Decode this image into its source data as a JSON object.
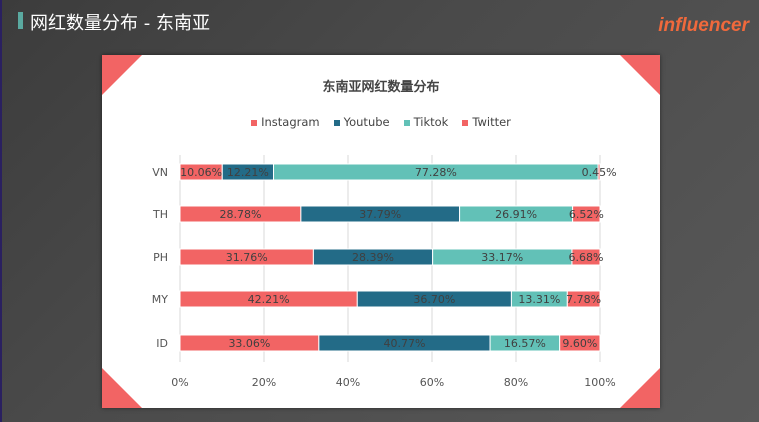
{
  "header": {
    "title": "网红数量分布 - 东南亚",
    "logo": "influencer"
  },
  "chart_data": {
    "type": "bar",
    "orientation": "horizontal",
    "stacked": "percent",
    "title": "东南亚网红数量分布",
    "categories": [
      "VN",
      "TH",
      "PH",
      "MY",
      "ID"
    ],
    "series": [
      {
        "name": "Instagram",
        "color": "#f26464",
        "values": [
          10.06,
          28.78,
          31.76,
          42.21,
          33.06
        ]
      },
      {
        "name": "Youtube",
        "color": "#236b87",
        "values": [
          12.21,
          37.79,
          28.39,
          36.7,
          40.77
        ]
      },
      {
        "name": "Tiktok",
        "color": "#62c1b7",
        "values": [
          77.28,
          26.91,
          33.17,
          13.31,
          16.57
        ]
      },
      {
        "name": "Twitter",
        "color": "#f26464",
        "values": [
          0.45,
          6.52,
          6.68,
          7.78,
          9.6
        ]
      }
    ],
    "xlim": [
      0,
      100
    ],
    "xticks": [
      "0%",
      "20%",
      "40%",
      "60%",
      "80%",
      "100%"
    ],
    "grid": true,
    "legend": "top"
  }
}
